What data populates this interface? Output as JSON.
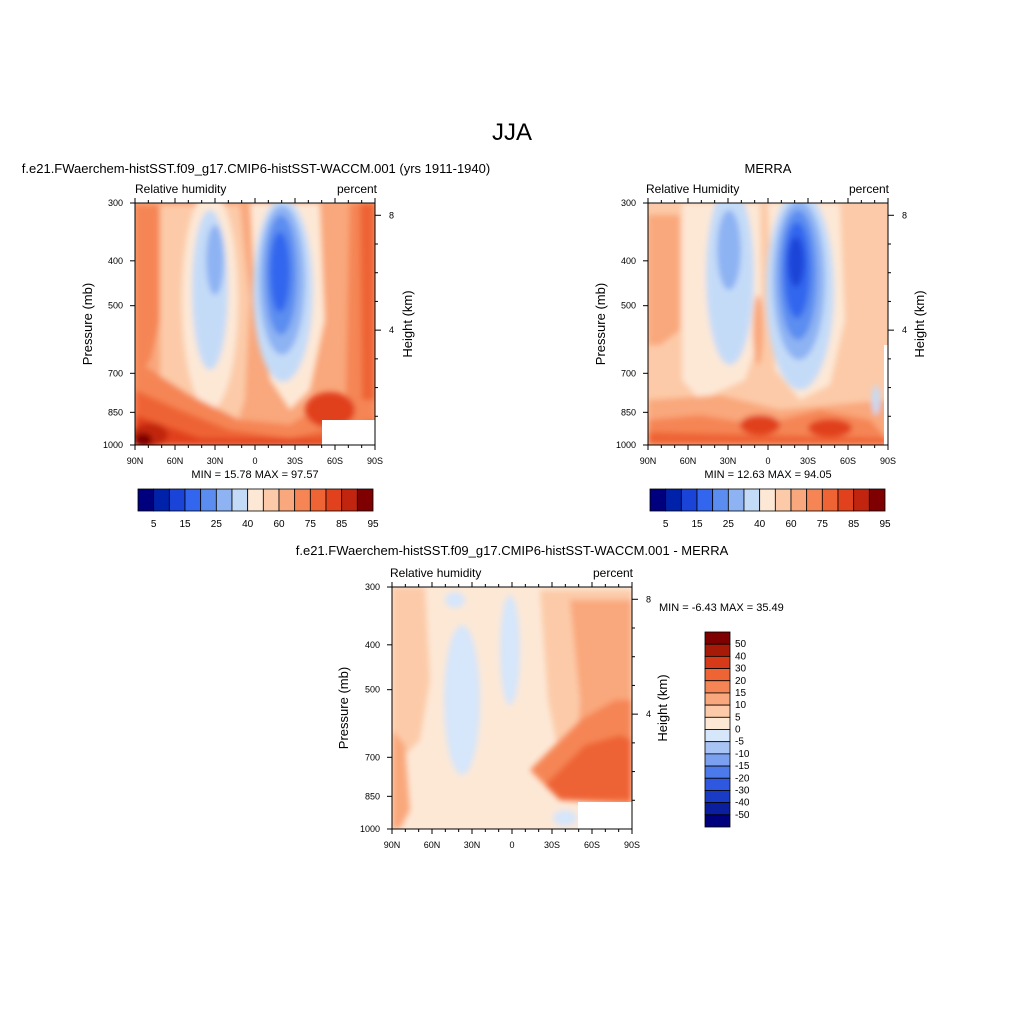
{
  "page_title": "JJA",
  "chart_data": [
    {
      "type": "heatmap",
      "title": "f.e21.FWaerchem-histSST.f09_g17.CMIP6-histSST-WACCM.001 (yrs 1911-1940)",
      "left_label": "Relative humidity",
      "right_label": "percent",
      "ylabel": "Pressure (mb)",
      "y2label": "Height (km)",
      "x_ticks": [
        "90N",
        "60N",
        "30N",
        "0",
        "30S",
        "60S",
        "90S"
      ],
      "y_ticks": [
        "300",
        "400",
        "500",
        "700",
        "850",
        "1000"
      ],
      "y2_ticks": [
        "8",
        "4"
      ],
      "stats": "MIN =  15.78  MAX =  97.57",
      "colorbar_labels": [
        "5",
        "15",
        "25",
        "40",
        "60",
        "75",
        "85",
        "95"
      ],
      "min": 15.78,
      "max": 97.57
    },
    {
      "type": "heatmap",
      "title": "MERRA",
      "left_label": "Relative Humidity",
      "right_label": "percent",
      "ylabel": "Pressure (mb)",
      "y2label": "Height (km)",
      "x_ticks": [
        "90N",
        "60N",
        "30N",
        "0",
        "30S",
        "60S",
        "90S"
      ],
      "y_ticks": [
        "300",
        "400",
        "500",
        "700",
        "850",
        "1000"
      ],
      "y2_ticks": [
        "8",
        "4"
      ],
      "stats": "MIN =  12.63  MAX =  94.05",
      "colorbar_labels": [
        "5",
        "15",
        "25",
        "40",
        "60",
        "75",
        "85",
        "95"
      ],
      "min": 12.63,
      "max": 94.05
    },
    {
      "type": "heatmap",
      "title": "f.e21.FWaerchem-histSST.f09_g17.CMIP6-histSST-WACCM.001 - MERRA",
      "left_label": "Relative humidity",
      "right_label": "percent",
      "ylabel": "Pressure (mb)",
      "y2label": "Height (km)",
      "x_ticks": [
        "90N",
        "60N",
        "30N",
        "0",
        "30S",
        "60S",
        "90S"
      ],
      "y_ticks": [
        "300",
        "400",
        "500",
        "700",
        "850",
        "1000"
      ],
      "y2_ticks": [
        "8",
        "4"
      ],
      "stats": "MIN =  -6.43  MAX =  35.49",
      "colorbar_labels": [
        "50",
        "40",
        "30",
        "20",
        "15",
        "10",
        "5",
        "0",
        "-5",
        "-10",
        "-15",
        "-20",
        "-30",
        "-40",
        "-50"
      ],
      "min": -6.43,
      "max": 35.49
    }
  ],
  "palettes": {
    "abs": [
      "#00007f",
      "#0022aa",
      "#1a44d8",
      "#3366ee",
      "#5b8df0",
      "#8eb3f3",
      "#c4dbf8",
      "#fde8d6",
      "#fccaa8",
      "#f9a77c",
      "#f58554",
      "#ee6434",
      "#e1411c",
      "#c12510",
      "#7f0000"
    ],
    "diff": [
      "#00007f",
      "#0a1e9e",
      "#1a3cc4",
      "#2e58e0",
      "#4d7aea",
      "#7aa0ef",
      "#a8c4f4",
      "#d6e6fb",
      "#fde8d6",
      "#fccaa8",
      "#f9a77c",
      "#f58554",
      "#ee6434",
      "#d63a18",
      "#a81a08",
      "#7f0000"
    ]
  }
}
